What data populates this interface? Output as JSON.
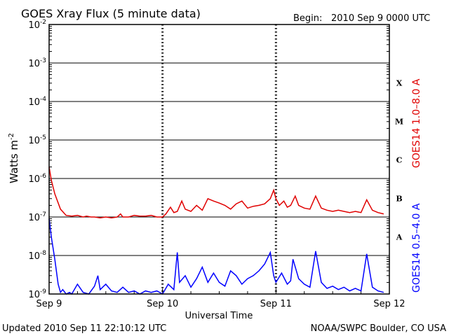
{
  "header": {
    "title": "GOES Xray Flux (5 minute data)",
    "begin_label": "Begin:",
    "begin_value": "2010 Sep 9 0000 UTC"
  },
  "footer": {
    "updated": "Updated 2010 Sep 11 22:10:12 UTC",
    "credit": "NOAA/SWPC Boulder, CO USA"
  },
  "colors": {
    "long_channel": "#e00000",
    "short_channel": "#0000ff",
    "axis": "#000000"
  },
  "chart_data": {
    "type": "line",
    "title": "GOES Xray Flux (5 minute data)",
    "xlabel": "Universal Time",
    "ylabel_base": "Watts m",
    "ylabel_exp": "-2",
    "y_scale": "log",
    "ylim": [
      1e-09,
      0.01
    ],
    "xlim_days": [
      0,
      3
    ],
    "grid": true,
    "x_ticks": [
      "Sep 9",
      "Sep 10",
      "Sep 11",
      "Sep 12"
    ],
    "y_ticks": [
      {
        "base": "10",
        "exp": "-2"
      },
      {
        "base": "10",
        "exp": "-3"
      },
      {
        "base": "10",
        "exp": "-4"
      },
      {
        "base": "10",
        "exp": "-5"
      },
      {
        "base": "10",
        "exp": "-6"
      },
      {
        "base": "10",
        "exp": "-7"
      },
      {
        "base": "10",
        "exp": "-8"
      },
      {
        "base": "10",
        "exp": "-9"
      }
    ],
    "flare_classes": [
      {
        "label": "X",
        "flux": 0.0001
      },
      {
        "label": "M",
        "flux": 1e-05
      },
      {
        "label": "C",
        "flux": 1e-06
      },
      {
        "label": "B",
        "flux": 1e-07
      },
      {
        "label": "A",
        "flux": 1e-08
      }
    ],
    "series": [
      {
        "name": "GOES14 1.0–8.0 A",
        "color": "#e00000",
        "x": [
          0.0,
          0.02,
          0.05,
          0.1,
          0.15,
          0.2,
          0.25,
          0.3,
          0.33,
          0.37,
          0.4,
          0.45,
          0.5,
          0.55,
          0.6,
          0.63,
          0.65,
          0.7,
          0.75,
          0.8,
          0.85,
          0.9,
          0.95,
          1.0,
          1.03,
          1.07,
          1.1,
          1.13,
          1.17,
          1.2,
          1.25,
          1.3,
          1.35,
          1.4,
          1.45,
          1.5,
          1.55,
          1.6,
          1.65,
          1.7,
          1.75,
          1.8,
          1.85,
          1.9,
          1.95,
          1.98,
          2.0,
          2.03,
          2.07,
          2.1,
          2.13,
          2.17,
          2.2,
          2.25,
          2.3,
          2.35,
          2.4,
          2.45,
          2.5,
          2.55,
          2.6,
          2.65,
          2.7,
          2.75,
          2.8,
          2.85,
          2.9,
          2.95
        ],
        "y": [
          2e-06,
          9e-07,
          4e-07,
          1.6e-07,
          1.1e-07,
          1.05e-07,
          1.1e-07,
          1e-07,
          1.05e-07,
          1e-07,
          1e-07,
          9.5e-08,
          1e-07,
          9.5e-08,
          1e-07,
          1.2e-07,
          1e-07,
          1e-07,
          1.1e-07,
          1.05e-07,
          1.05e-07,
          1.1e-07,
          1e-07,
          1e-07,
          1.2e-07,
          1.8e-07,
          1.3e-07,
          1.4e-07,
          2.6e-07,
          1.6e-07,
          1.4e-07,
          2e-07,
          1.5e-07,
          3e-07,
          2.6e-07,
          2.3e-07,
          2e-07,
          1.6e-07,
          2.2e-07,
          2.6e-07,
          1.7e-07,
          1.9e-07,
          2e-07,
          2.2e-07,
          3e-07,
          5e-07,
          3e-07,
          2e-07,
          2.6e-07,
          1.8e-07,
          2e-07,
          3.5e-07,
          2e-07,
          1.7e-07,
          1.6e-07,
          3.5e-07,
          1.7e-07,
          1.5e-07,
          1.4e-07,
          1.5e-07,
          1.4e-07,
          1.3e-07,
          1.4e-07,
          1.3e-07,
          2.8e-07,
          1.5e-07,
          1.3e-07,
          1.2e-07
        ]
      },
      {
        "name": "GOES14 0.5–4.0 A",
        "color": "#0000ff",
        "x": [
          0.0,
          0.02,
          0.05,
          0.08,
          0.1,
          0.12,
          0.15,
          0.18,
          0.2,
          0.25,
          0.3,
          0.35,
          0.4,
          0.43,
          0.45,
          0.5,
          0.55,
          0.6,
          0.65,
          0.7,
          0.75,
          0.8,
          0.85,
          0.9,
          0.95,
          1.0,
          1.05,
          1.1,
          1.13,
          1.15,
          1.2,
          1.25,
          1.3,
          1.35,
          1.4,
          1.45,
          1.5,
          1.55,
          1.6,
          1.65,
          1.7,
          1.75,
          1.8,
          1.85,
          1.9,
          1.95,
          1.98,
          2.0,
          2.05,
          2.1,
          2.13,
          2.15,
          2.2,
          2.25,
          2.3,
          2.35,
          2.4,
          2.45,
          2.5,
          2.55,
          2.6,
          2.65,
          2.7,
          2.75,
          2.8,
          2.85,
          2.9,
          2.95
        ],
        "y": [
          9e-08,
          3e-08,
          8e-09,
          1.8e-09,
          1.1e-09,
          1.3e-09,
          1e-09,
          1.1e-09,
          1e-09,
          1.8e-09,
          1.1e-09,
          1e-09,
          1.6e-09,
          3e-09,
          1.3e-09,
          1.8e-09,
          1.2e-09,
          1.1e-09,
          1.5e-09,
          1.1e-09,
          1.2e-09,
          1e-09,
          1.2e-09,
          1.1e-09,
          1.2e-09,
          1e-09,
          1.8e-09,
          1.3e-09,
          1.2e-08,
          2e-09,
          3e-09,
          1.5e-09,
          2.5e-09,
          5e-09,
          2e-09,
          3.5e-09,
          2e-09,
          1.6e-09,
          4e-09,
          3e-09,
          1.8e-09,
          2.5e-09,
          3e-09,
          4e-09,
          6e-09,
          1.2e-08,
          3e-09,
          2e-09,
          3.5e-09,
          1.8e-09,
          2.2e-09,
          8e-09,
          2.5e-09,
          1.8e-09,
          1.5e-09,
          1.3e-08,
          2e-09,
          1.4e-09,
          1.6e-09,
          1.3e-09,
          1.5e-09,
          1.2e-09,
          1.4e-09,
          1.2e-09,
          1.1e-08,
          1.5e-09,
          1.2e-09,
          1.1e-09
        ]
      }
    ],
    "right_labels": [
      {
        "text": "GOES14 1.0–8.0 A",
        "color": "#e00000"
      },
      {
        "text": "GOES14 0.5–4.0 A",
        "color": "#0000ff"
      }
    ]
  }
}
